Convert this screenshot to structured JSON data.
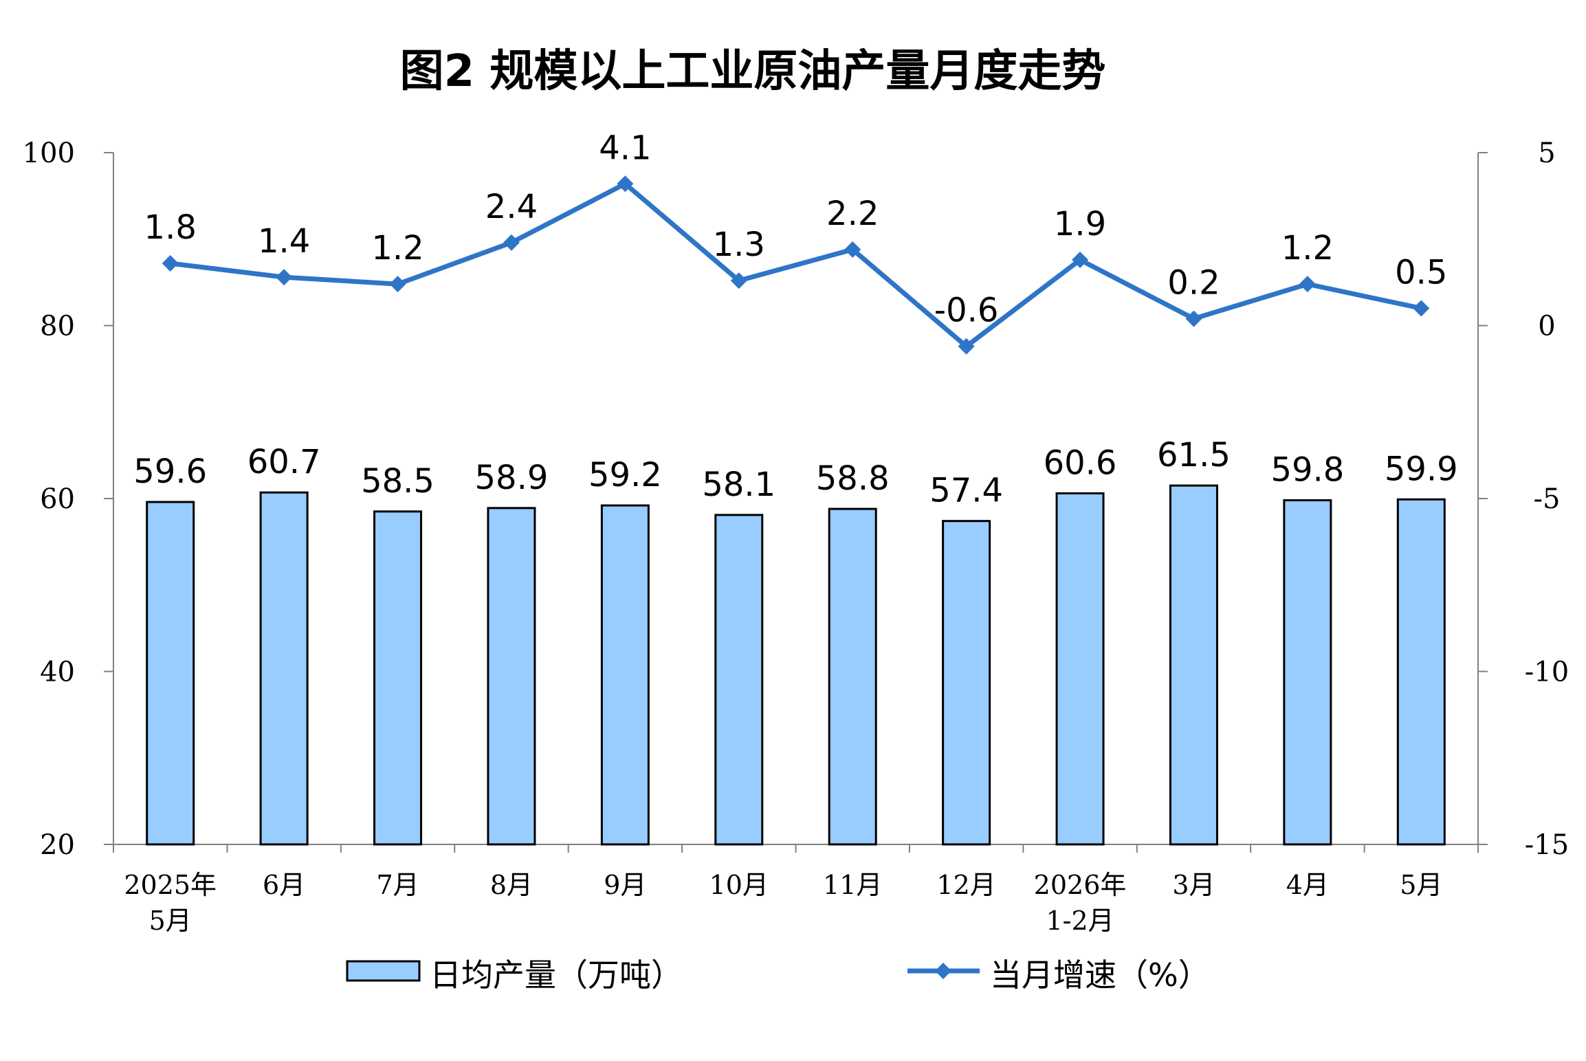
{
  "chart_data": {
    "type": "bar",
    "title": "图2 规模以上工业原油产量月度走势",
    "categories": [
      [
        "2025年",
        "5月"
      ],
      [
        "6月"
      ],
      [
        "7月"
      ],
      [
        "8月"
      ],
      [
        "9月"
      ],
      [
        "10月"
      ],
      [
        "11月"
      ],
      [
        "12月"
      ],
      [
        "2026年",
        "1-2月"
      ],
      [
        "3月"
      ],
      [
        "4月"
      ],
      [
        "5月"
      ]
    ],
    "series": [
      {
        "name": "日均产量（万吨）",
        "type": "bar",
        "axis": "left",
        "color": "#99CCFF",
        "values": [
          59.6,
          60.7,
          58.5,
          58.9,
          59.2,
          58.1,
          58.8,
          57.4,
          60.6,
          61.5,
          59.8,
          59.9
        ]
      },
      {
        "name": "当月增速（%）",
        "type": "line",
        "axis": "right",
        "color": "#2E75C8",
        "values": [
          1.8,
          1.4,
          1.2,
          2.4,
          4.1,
          1.3,
          2.2,
          -0.6,
          1.9,
          0.2,
          1.2,
          0.5
        ]
      }
    ],
    "y_left": {
      "min": 20,
      "max": 100,
      "ticks": [
        20,
        40,
        60,
        80,
        100
      ]
    },
    "y_right": {
      "min": -15,
      "max": 5,
      "ticks": [
        -15,
        -10,
        -5,
        0,
        5
      ]
    },
    "legend_position": "bottom",
    "grid": false
  }
}
